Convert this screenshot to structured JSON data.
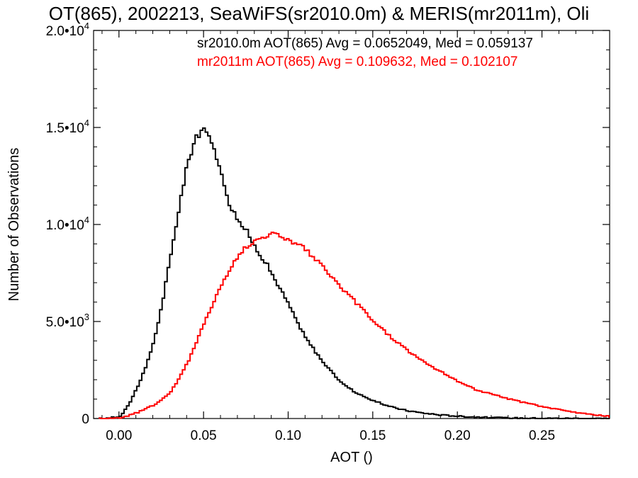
{
  "chart_data": {
    "type": "line",
    "title": "OT(865), 2002213, SeaWiFS(sr2010.0m) & MERIS(mr2011m), Oli",
    "xlabel": "AOT ()",
    "ylabel": "Number of Observations",
    "xlim": [
      -0.015,
      0.29
    ],
    "ylim": [
      0,
      20000
    ],
    "x_ticks": [
      0.0,
      0.05,
      0.1,
      0.15,
      0.2,
      0.25
    ],
    "x_tick_labels": [
      "0.00",
      "0.05",
      "0.10",
      "0.15",
      "0.20",
      "0.25"
    ],
    "y_ticks": [
      0,
      5000,
      10000,
      15000,
      20000
    ],
    "y_tick_labels": [
      {
        "mant": "0",
        "exp": ""
      },
      {
        "mant": "5.0•10",
        "exp": "3"
      },
      {
        "mant": "1.0•10",
        "exp": "4"
      },
      {
        "mant": "1.5•10",
        "exp": "4"
      },
      {
        "mant": "2.0•10",
        "exp": "4"
      }
    ],
    "grid": false,
    "series": [
      {
        "legend": "sr2010.0m AOT(865) Avg = 0.0652049, Med = 0.059137",
        "color": "#000000",
        "x": [
          -0.01,
          0.0,
          0.005,
          0.01,
          0.015,
          0.02,
          0.025,
          0.03,
          0.035,
          0.04,
          0.045,
          0.05,
          0.055,
          0.06,
          0.065,
          0.07,
          0.075,
          0.08,
          0.085,
          0.09,
          0.095,
          0.1,
          0.105,
          0.11,
          0.115,
          0.12,
          0.125,
          0.13,
          0.14,
          0.15,
          0.16,
          0.17,
          0.18,
          0.19,
          0.2,
          0.21,
          0.22,
          0.23,
          0.24,
          0.25,
          0.26,
          0.27,
          0.28,
          0.29
        ],
        "y": [
          0,
          100,
          700,
          1600,
          2600,
          4000,
          6000,
          8400,
          11000,
          13200,
          14600,
          14800,
          14200,
          12500,
          11000,
          10200,
          9600,
          8800,
          8200,
          7400,
          6600,
          5800,
          4900,
          4100,
          3500,
          2900,
          2400,
          1900,
          1300,
          900,
          600,
          400,
          270,
          180,
          120,
          80,
          50,
          30,
          20,
          15,
          10,
          8,
          5,
          3
        ]
      },
      {
        "legend": "mr2011m AOT(865) Avg = 0.109632, Med = 0.102107",
        "color": "#ff0000",
        "x": [
          -0.01,
          0.0,
          0.01,
          0.02,
          0.025,
          0.03,
          0.035,
          0.04,
          0.045,
          0.05,
          0.055,
          0.06,
          0.065,
          0.07,
          0.075,
          0.08,
          0.085,
          0.09,
          0.095,
          0.1,
          0.105,
          0.11,
          0.115,
          0.12,
          0.125,
          0.13,
          0.14,
          0.15,
          0.16,
          0.17,
          0.18,
          0.19,
          0.2,
          0.21,
          0.22,
          0.23,
          0.24,
          0.25,
          0.26,
          0.27,
          0.28,
          0.29
        ],
        "y": [
          0,
          30,
          300,
          700,
          1000,
          1400,
          2100,
          2900,
          3900,
          5000,
          6000,
          6900,
          7700,
          8400,
          8900,
          9200,
          9400,
          9500,
          9400,
          9200,
          9000,
          8700,
          8200,
          7800,
          7300,
          6800,
          5900,
          5000,
          4200,
          3500,
          2900,
          2400,
          1900,
          1500,
          1250,
          1000,
          800,
          600,
          450,
          300,
          200,
          100
        ]
      }
    ]
  }
}
